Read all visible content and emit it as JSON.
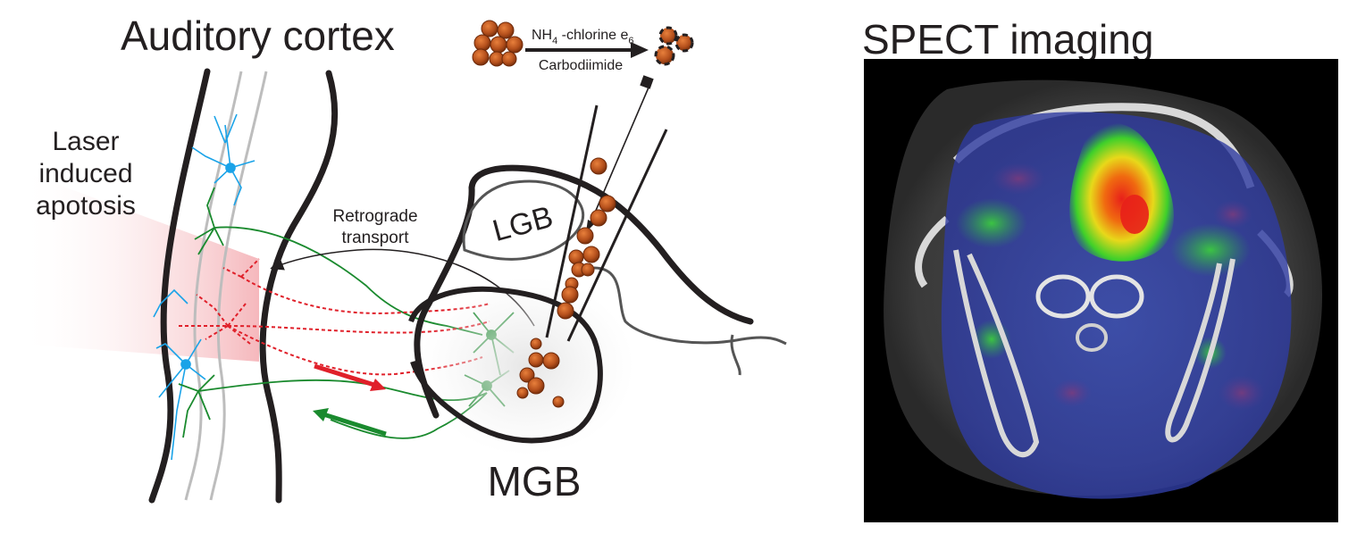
{
  "left_panel": {
    "title": "Auditory cortex",
    "laser_line1": "Laser",
    "laser_line2": "induced",
    "laser_line3": "apotosis",
    "retrograde_line1": "Retrograde",
    "retrograde_line2": "transport",
    "lgb_label": "LGB",
    "mgb_label": "MGB",
    "reaction_top": "NH",
    "reaction_top_sub": "4",
    "reaction_top_rest": " -chlorine e",
    "reaction_top_sub2": "6",
    "reaction_bottom": "Carbodiimide"
  },
  "right_panel": {
    "title": "SPECT imaging"
  },
  "colors": {
    "outline": "#231f20",
    "neuron_blue": "#1aa3e8",
    "neuron_green": "#1a8a2e",
    "neuron_red": "#e0202a",
    "nanoparticle": "#b5501c",
    "laser_glow": "#f2a0a6",
    "spect_hot": "#e8201a",
    "spect_bg": "#000000"
  }
}
